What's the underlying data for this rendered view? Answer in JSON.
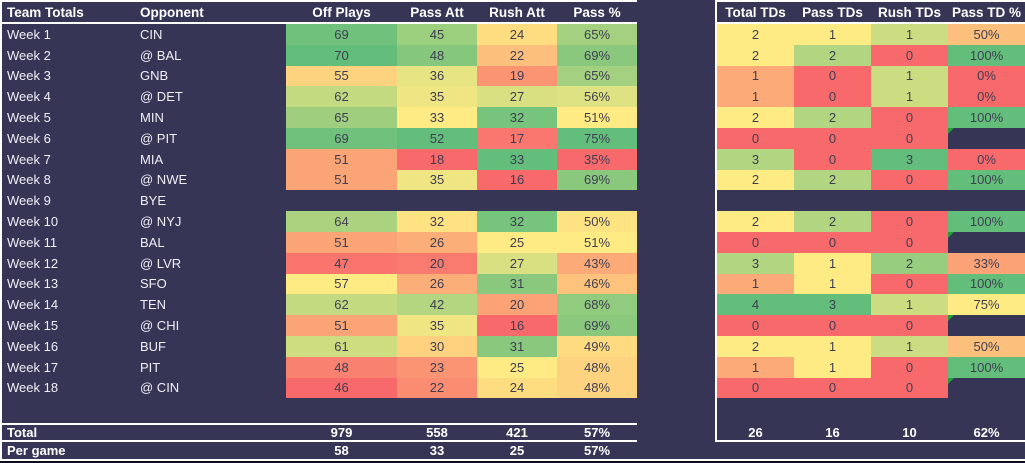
{
  "left_table": {
    "headers": [
      "Team Totals",
      "Opponent",
      "Off Plays",
      "Pass Att",
      "Rush Att",
      "Pass %"
    ]
  },
  "right_table": {
    "headers": [
      "Total TDs",
      "Pass TDs",
      "Rush TDs",
      "Pass TD %"
    ]
  },
  "weeks": [
    {
      "label": "Week 1",
      "opponent": "CIN",
      "off_plays": 69,
      "pass_att": 45,
      "rush_att": 24,
      "pass_pct": 65,
      "total_tds": 2,
      "pass_tds": 1,
      "rush_tds": 1,
      "pass_td_pct": 50
    },
    {
      "label": "Week 2",
      "opponent": "@ BAL",
      "off_plays": 70,
      "pass_att": 48,
      "rush_att": 22,
      "pass_pct": 69,
      "total_tds": 2,
      "pass_tds": 2,
      "rush_tds": 0,
      "pass_td_pct": 100
    },
    {
      "label": "Week 3",
      "opponent": "GNB",
      "off_plays": 55,
      "pass_att": 36,
      "rush_att": 19,
      "pass_pct": 65,
      "total_tds": 1,
      "pass_tds": 0,
      "rush_tds": 1,
      "pass_td_pct": 0
    },
    {
      "label": "Week 4",
      "opponent": "@ DET",
      "off_plays": 62,
      "pass_att": 35,
      "rush_att": 27,
      "pass_pct": 56,
      "total_tds": 1,
      "pass_tds": 0,
      "rush_tds": 1,
      "pass_td_pct": 0
    },
    {
      "label": "Week 5",
      "opponent": "MIN",
      "off_plays": 65,
      "pass_att": 33,
      "rush_att": 32,
      "pass_pct": 51,
      "total_tds": 2,
      "pass_tds": 2,
      "rush_tds": 0,
      "pass_td_pct": 100
    },
    {
      "label": "Week 6",
      "opponent": "@ PIT",
      "off_plays": 69,
      "pass_att": 52,
      "rush_att": 17,
      "pass_pct": 75,
      "total_tds": 0,
      "pass_tds": 0,
      "rush_tds": 0,
      "pass_td_pct": null,
      "pass_td_pct_error": true
    },
    {
      "label": "Week 7",
      "opponent": "MIA",
      "off_plays": 51,
      "pass_att": 18,
      "rush_att": 33,
      "pass_pct": 35,
      "total_tds": 3,
      "pass_tds": 0,
      "rush_tds": 3,
      "pass_td_pct": 0
    },
    {
      "label": "Week 8",
      "opponent": "@ NWE",
      "off_plays": 51,
      "pass_att": 35,
      "rush_att": 16,
      "pass_pct": 69,
      "total_tds": 2,
      "pass_tds": 2,
      "rush_tds": 0,
      "pass_td_pct": 100
    },
    {
      "label": "Week 9",
      "opponent": "BYE",
      "off_plays": null,
      "pass_att": null,
      "rush_att": null,
      "pass_pct": null,
      "total_tds": null,
      "pass_tds": null,
      "rush_tds": null,
      "pass_td_pct": null
    },
    {
      "label": "Week 10",
      "opponent": "@ NYJ",
      "off_plays": 64,
      "pass_att": 32,
      "rush_att": 32,
      "pass_pct": 50,
      "total_tds": 2,
      "pass_tds": 2,
      "rush_tds": 0,
      "pass_td_pct": 100
    },
    {
      "label": "Week 11",
      "opponent": "BAL",
      "off_plays": 51,
      "pass_att": 26,
      "rush_att": 25,
      "pass_pct": 51,
      "total_tds": 0,
      "pass_tds": 0,
      "rush_tds": 0,
      "pass_td_pct": null,
      "pass_td_pct_error": true
    },
    {
      "label": "Week 12",
      "opponent": "@ LVR",
      "off_plays": 47,
      "pass_att": 20,
      "rush_att": 27,
      "pass_pct": 43,
      "total_tds": 3,
      "pass_tds": 1,
      "rush_tds": 2,
      "pass_td_pct": 33
    },
    {
      "label": "Week 13",
      "opponent": "SFO",
      "off_plays": 57,
      "pass_att": 26,
      "rush_att": 31,
      "pass_pct": 46,
      "total_tds": 1,
      "pass_tds": 1,
      "rush_tds": 0,
      "pass_td_pct": 100
    },
    {
      "label": "Week 14",
      "opponent": "TEN",
      "off_plays": 62,
      "pass_att": 42,
      "rush_att": 20,
      "pass_pct": 68,
      "total_tds": 4,
      "pass_tds": 3,
      "rush_tds": 1,
      "pass_td_pct": 75
    },
    {
      "label": "Week 15",
      "opponent": "@ CHI",
      "off_plays": 51,
      "pass_att": 35,
      "rush_att": 16,
      "pass_pct": 69,
      "total_tds": 0,
      "pass_tds": 0,
      "rush_tds": 0,
      "pass_td_pct": null,
      "pass_td_pct_error": true
    },
    {
      "label": "Week 16",
      "opponent": "BUF",
      "off_plays": 61,
      "pass_att": 30,
      "rush_att": 31,
      "pass_pct": 49,
      "total_tds": 2,
      "pass_tds": 1,
      "rush_tds": 1,
      "pass_td_pct": 50
    },
    {
      "label": "Week 17",
      "opponent": "PIT",
      "off_plays": 48,
      "pass_att": 23,
      "rush_att": 25,
      "pass_pct": 48,
      "total_tds": 1,
      "pass_tds": 1,
      "rush_tds": 0,
      "pass_td_pct": 100
    },
    {
      "label": "Week 18",
      "opponent": "@ CIN",
      "off_plays": 46,
      "pass_att": 22,
      "rush_att": 24,
      "pass_pct": 48,
      "total_tds": 0,
      "pass_tds": 0,
      "rush_tds": 0,
      "pass_td_pct": null,
      "pass_td_pct_error": true
    }
  ],
  "totals": {
    "label": "Total",
    "off_plays": "979",
    "pass_att": "558",
    "rush_att": "421",
    "pass_pct": "57%",
    "total_tds": "26",
    "pass_tds": "16",
    "rush_tds": "10",
    "pass_td_pct": "62%"
  },
  "per_game": {
    "label": "Per game",
    "off_plays": "58",
    "pass_att": "33",
    "rush_att": "25",
    "pass_pct": "57%"
  },
  "colors": {
    "background": "#363556",
    "border": "#FFFFFF",
    "bottom_strip": "#0E0E18",
    "scale_min_red": "#F8696B",
    "scale_mid_yellow": "#FFEB84",
    "scale_max_green": "#63BE7B",
    "cell_text": "#3E3E52",
    "label_text": "#EFEFF7",
    "error_indicator_green": "#21A038"
  }
}
